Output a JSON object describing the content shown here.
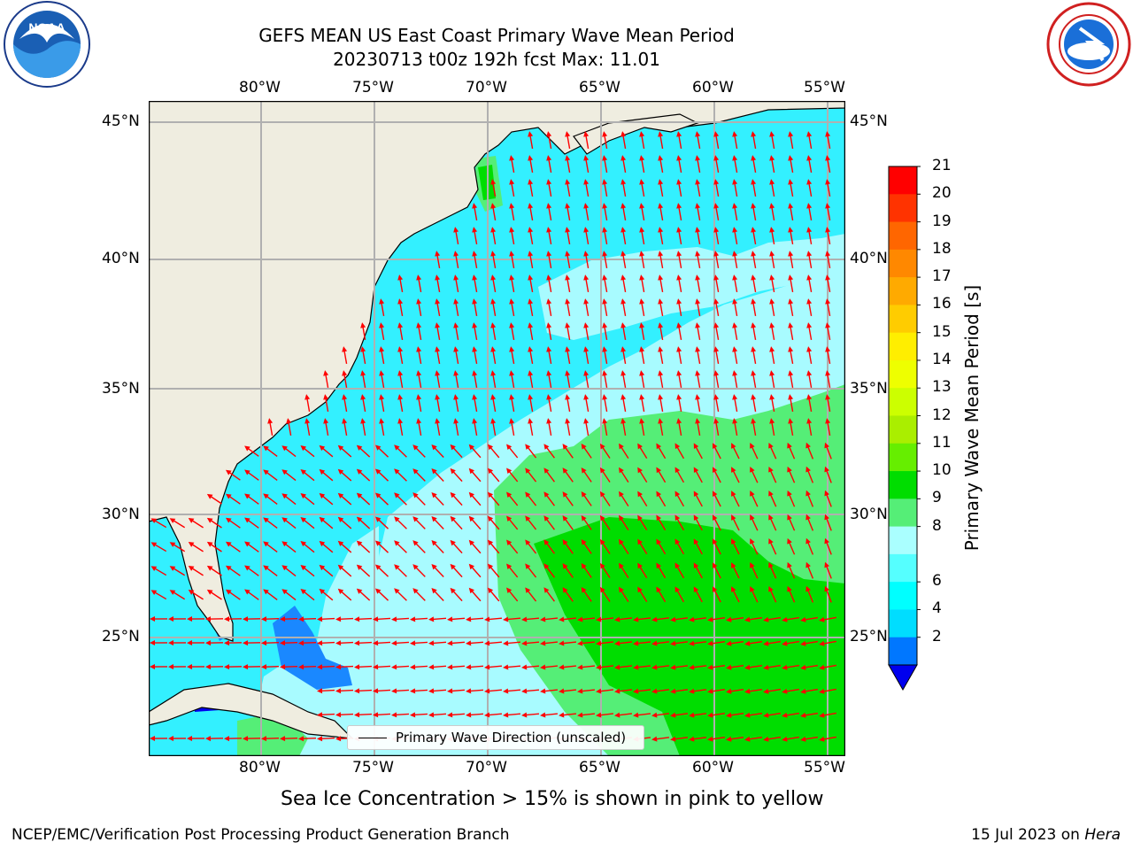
{
  "title": {
    "line1": "GEFS MEAN US East Coast Primary Wave Mean Period",
    "line2": "20230713 t00z 192h fcst   Max: 11.01"
  },
  "logos": {
    "left": {
      "icon": "noaa-logo",
      "text": "NOAA"
    },
    "right": {
      "icon": "nws-logo"
    }
  },
  "axes": {
    "lon_ticks": [
      "80°W",
      "75°W",
      "70°W",
      "65°W",
      "60°W",
      "55°W"
    ],
    "lat_ticks_left": [
      "45°N",
      "40°N",
      "35°N",
      "30°N",
      "25°N"
    ],
    "lat_ticks_right": [
      "45°N",
      "40°N",
      "35°N",
      "30°N",
      "25°N"
    ]
  },
  "legend": {
    "label": "Primary Wave Direction (unscaled)"
  },
  "colorbar": {
    "label": "Primary Wave Mean Period [s]",
    "ticks": [
      "21",
      "20",
      "19",
      "18",
      "17",
      "16",
      "15",
      "14",
      "13",
      "12",
      "11",
      "10",
      "9",
      "8",
      "6",
      "4",
      "2"
    ],
    "colors": [
      "#ff0000",
      "#ff3300",
      "#ff6600",
      "#ff8800",
      "#ffaa00",
      "#ffcc00",
      "#ffee00",
      "#eeff00",
      "#ccff00",
      "#aaee00",
      "#66ee00",
      "#00dd00",
      "#55ee77",
      "#aaffff",
      "#55ffff",
      "#00ffff",
      "#00ddff",
      "#0077ff"
    ],
    "extend_color": "#0000ee"
  },
  "map_colors": {
    "land": "#efede0",
    "ocean_low": "#33f0ff",
    "ocean_mid": "#a8fbff",
    "ocean_high": "#55ee77",
    "ocean_peak": "#00dd00",
    "shallow": "#1a88ff",
    "arrow": "#ff0000"
  },
  "note": "Sea Ice Concentration > 15% is shown in pink to yellow",
  "footer": {
    "left": "NCEP/EMC/Verification Post Processing Product Generation Branch",
    "right_date": "15 Jul 2023 on ",
    "right_host": "Hera"
  }
}
